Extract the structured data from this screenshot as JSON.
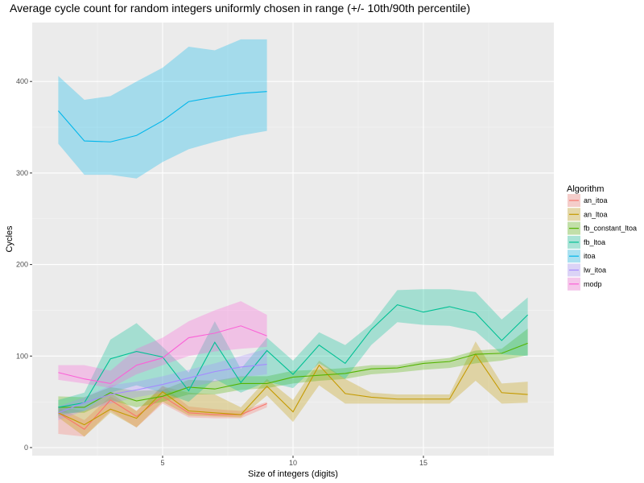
{
  "chart_data": {
    "type": "line",
    "title": "Average cycle count for random integers uniformly chosen in range (+/- 10th/90th percentile)",
    "xlabel": "Size of integers (digits)",
    "ylabel": "Cycles",
    "xlim": [
      0.1,
      19.9
    ],
    "ylim": [
      -10,
      450
    ],
    "xticks": [
      5,
      10,
      15
    ],
    "yticks": [
      0,
      100,
      200,
      300,
      400
    ],
    "grid": true,
    "legend": {
      "title": "Algorithm",
      "position": "right"
    },
    "series": [
      {
        "name": "an_itoa",
        "color": "#F8766D",
        "x": [
          1,
          2,
          3,
          4,
          5,
          6,
          7,
          8,
          9
        ],
        "values": [
          38,
          20,
          52,
          34,
          56,
          38,
          36,
          36,
          48
        ],
        "lower": [
          15,
          12,
          40,
          22,
          48,
          33,
          32,
          32,
          44
        ],
        "upper": [
          44,
          30,
          56,
          40,
          68,
          45,
          42,
          40,
          50
        ]
      },
      {
        "name": "an_ltoa",
        "color": "#C49A00",
        "x": [
          1,
          2,
          3,
          4,
          5,
          6,
          7,
          8,
          9,
          10,
          11,
          12,
          13,
          14,
          15,
          16,
          17,
          18,
          19
        ],
        "values": [
          38,
          25,
          42,
          32,
          61,
          40,
          38,
          36,
          67,
          39,
          90,
          59,
          55,
          53,
          53,
          53,
          102,
          60,
          58
        ],
        "lower": [
          33,
          12,
          38,
          22,
          50,
          35,
          34,
          33,
          57,
          28,
          68,
          48,
          48,
          48,
          48,
          48,
          73,
          48,
          49
        ],
        "upper": [
          45,
          40,
          60,
          40,
          67,
          60,
          58,
          44,
          75,
          52,
          95,
          75,
          60,
          58,
          58,
          58,
          116,
          70,
          72
        ]
      },
      {
        "name": "fb_constant_ltoa",
        "color": "#53B400",
        "x": [
          1,
          2,
          3,
          4,
          5,
          6,
          7,
          8,
          9,
          10,
          11,
          12,
          13,
          14,
          15,
          16,
          17,
          18,
          19
        ],
        "values": [
          44,
          44,
          60,
          51,
          56,
          66,
          64,
          70,
          70,
          77,
          79,
          81,
          86,
          87,
          92,
          94,
          102,
          103,
          114
        ],
        "lower": [
          38,
          38,
          52,
          44,
          50,
          58,
          58,
          63,
          65,
          70,
          73,
          75,
          80,
          82,
          85,
          87,
          92,
          95,
          101
        ],
        "upper": [
          56,
          55,
          66,
          62,
          63,
          74,
          73,
          78,
          78,
          84,
          85,
          87,
          90,
          90,
          95,
          98,
          106,
          108,
          130
        ]
      },
      {
        "name": "fb_ltoa",
        "color": "#00C094",
        "x": [
          1,
          2,
          3,
          4,
          5,
          6,
          7,
          8,
          9,
          10,
          11,
          12,
          13,
          14,
          15,
          16,
          17,
          18,
          19
        ],
        "values": [
          44,
          49,
          97,
          105,
          99,
          62,
          115,
          71,
          106,
          80,
          112,
          92,
          129,
          156,
          148,
          154,
          147,
          117,
          145
        ],
        "lower": [
          35,
          40,
          60,
          68,
          60,
          50,
          75,
          60,
          72,
          65,
          92,
          75,
          112,
          137,
          134,
          133,
          127,
          102,
          100
        ],
        "upper": [
          52,
          60,
          118,
          136,
          110,
          82,
          138,
          86,
          120,
          95,
          126,
          112,
          135,
          172,
          173,
          173,
          170,
          140,
          164
        ]
      },
      {
        "name": "itoa",
        "color": "#00B6EB",
        "x": [
          1,
          2,
          3,
          4,
          5,
          6,
          7,
          8,
          9
        ],
        "values": [
          368,
          335,
          334,
          341,
          357,
          378,
          383,
          387,
          389
        ],
        "lower": [
          332,
          298,
          298,
          294,
          312,
          326,
          334,
          341,
          346
        ],
        "upper": [
          406,
          380,
          384,
          400,
          415,
          438,
          434,
          446,
          446
        ]
      },
      {
        "name": "lw_itoa",
        "color": "#A58AFF",
        "x": [
          1,
          2,
          3,
          4,
          5,
          6,
          7,
          8,
          9
        ],
        "values": [
          38,
          49,
          58,
          63,
          69,
          76,
          83,
          88,
          91
        ],
        "lower": [
          30,
          40,
          48,
          55,
          60,
          65,
          72,
          77,
          80
        ],
        "upper": [
          45,
          55,
          68,
          72,
          78,
          85,
          92,
          100,
          108
        ]
      },
      {
        "name": "modp",
        "color": "#FB61D7",
        "x": [
          1,
          2,
          3,
          4,
          5,
          6,
          7,
          8,
          9
        ],
        "values": [
          82,
          75,
          70,
          90,
          98,
          120,
          125,
          133,
          122
        ],
        "lower": [
          74,
          70,
          65,
          80,
          90,
          100,
          105,
          108,
          110
        ],
        "upper": [
          90,
          90,
          84,
          108,
          120,
          138,
          150,
          160,
          145
        ]
      }
    ]
  }
}
